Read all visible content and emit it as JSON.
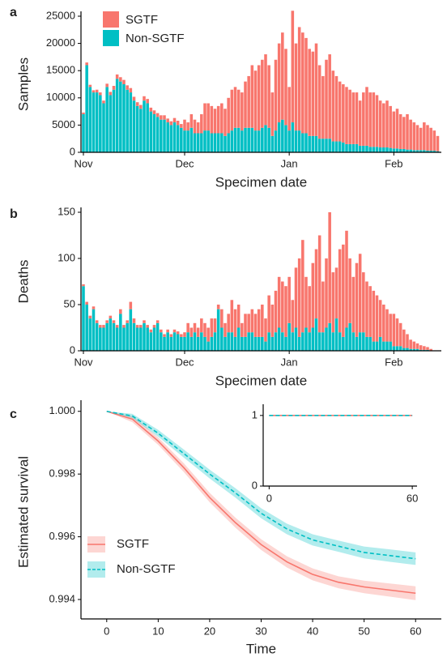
{
  "chart_data": [
    {
      "type": "bar",
      "panel": "a",
      "x_label": "Specimen date",
      "y_label": "Samples",
      "legend": "top-left",
      "categories": [
        "Nov",
        null,
        null,
        null,
        null,
        null,
        null,
        null,
        null,
        null,
        null,
        null,
        null,
        null,
        null,
        null,
        null,
        null,
        null,
        null,
        null,
        null,
        null,
        null,
        null,
        null,
        null,
        null,
        null,
        null,
        "Dec",
        null,
        null,
        null,
        null,
        null,
        null,
        null,
        null,
        null,
        null,
        null,
        null,
        null,
        null,
        null,
        null,
        null,
        null,
        null,
        null,
        null,
        null,
        null,
        null,
        null,
        null,
        null,
        null,
        null,
        null,
        "Jan",
        null,
        null,
        null,
        null,
        null,
        null,
        null,
        null,
        null,
        null,
        null,
        null,
        null,
        null,
        null,
        null,
        null,
        null,
        null,
        null,
        null,
        null,
        null,
        null,
        null,
        null,
        null,
        null,
        null,
        null,
        "Feb",
        null,
        null,
        null,
        null,
        null,
        null,
        null,
        null,
        null,
        null,
        null,
        null,
        null
      ],
      "ylim": [
        0,
        25000
      ],
      "yticks": [
        0,
        5000,
        10000,
        15000,
        20000,
        25000
      ],
      "series": [
        {
          "name": "SGTF",
          "color": "#f8766d",
          "values": [
            300,
            500,
            400,
            400,
            500,
            500,
            500,
            600,
            600,
            700,
            800,
            800,
            800,
            800,
            800,
            700,
            700,
            700,
            800,
            800,
            700,
            700,
            700,
            800,
            800,
            700,
            700,
            800,
            800,
            700,
            2000,
            1500,
            2500,
            2500,
            2000,
            3500,
            5000,
            5000,
            5000,
            4500,
            5000,
            5500,
            5000,
            6500,
            7500,
            7500,
            7000,
            7000,
            8500,
            9500,
            11500,
            11000,
            12000,
            12500,
            13000,
            11500,
            8000,
            13000,
            14500,
            16000,
            14000,
            8000,
            20500,
            16000,
            19000,
            18500,
            17500,
            16000,
            15500,
            17000,
            13500,
            11500,
            14500,
            15500,
            13000,
            12000,
            11000,
            10700,
            10500,
            10000,
            9500,
            9500,
            8300,
            9800,
            10800,
            10000,
            10000,
            9500,
            8600,
            8100,
            8600,
            7700,
            6800,
            7300,
            6400,
            5900,
            6500,
            5500,
            5100,
            4600,
            4100,
            5100,
            4700,
            4200,
            3700,
            2800
          ]
        },
        {
          "name": "Non-SGTF",
          "color": "#00bfc4",
          "values": [
            7000,
            16000,
            12000,
            11000,
            11000,
            10500,
            9000,
            12000,
            10500,
            11500,
            13500,
            13000,
            12500,
            11500,
            11000,
            9500,
            8500,
            8000,
            9500,
            9000,
            7500,
            7000,
            6500,
            6000,
            6000,
            5500,
            5000,
            5500,
            5000,
            4500,
            4000,
            4000,
            4500,
            3500,
            3500,
            3500,
            4000,
            4000,
            3500,
            3500,
            3500,
            3500,
            3000,
            3500,
            4000,
            4500,
            4500,
            4000,
            4500,
            4500,
            4500,
            4000,
            4000,
            4500,
            5000,
            4500,
            3000,
            4000,
            5500,
            6000,
            5000,
            4000,
            5500,
            4000,
            4000,
            3500,
            3500,
            3000,
            3000,
            3000,
            2500,
            2500,
            2500,
            2500,
            2000,
            2000,
            2000,
            1800,
            1500,
            1500,
            1500,
            1500,
            1200,
            1200,
            1200,
            1000,
            1000,
            1000,
            900,
            900,
            900,
            800,
            700,
            700,
            600,
            600,
            500,
            500,
            400,
            400,
            400,
            400,
            300,
            300,
            300,
            200
          ]
        }
      ]
    },
    {
      "type": "bar",
      "panel": "b",
      "x_label": "Specimen date",
      "y_label": "Deaths",
      "categories": [
        "Nov",
        null,
        null,
        null,
        null,
        null,
        null,
        null,
        null,
        null,
        null,
        null,
        null,
        null,
        null,
        null,
        null,
        null,
        null,
        null,
        null,
        null,
        null,
        null,
        null,
        null,
        null,
        null,
        null,
        null,
        "Dec",
        null,
        null,
        null,
        null,
        null,
        null,
        null,
        null,
        null,
        null,
        null,
        null,
        null,
        null,
        null,
        null,
        null,
        null,
        null,
        null,
        null,
        null,
        null,
        null,
        null,
        null,
        null,
        null,
        null,
        null,
        "Jan",
        null,
        null,
        null,
        null,
        null,
        null,
        null,
        null,
        null,
        null,
        null,
        null,
        null,
        null,
        null,
        null,
        null,
        null,
        null,
        null,
        null,
        null,
        null,
        null,
        null,
        null,
        null,
        null,
        null,
        null,
        "Feb",
        null,
        null,
        null,
        null,
        null,
        null,
        null,
        null,
        null,
        null,
        null,
        null,
        null
      ],
      "ylim": [
        0,
        150
      ],
      "yticks": [
        0,
        50,
        100,
        150
      ],
      "series": [
        {
          "name": "SGTF",
          "color": "#f8766d",
          "values": [
            2,
            3,
            3,
            3,
            3,
            3,
            3,
            3,
            3,
            3,
            3,
            5,
            3,
            3,
            8,
            5,
            3,
            3,
            3,
            3,
            3,
            3,
            3,
            3,
            3,
            3,
            3,
            3,
            3,
            3,
            5,
            10,
            10,
            10,
            10,
            15,
            15,
            15,
            20,
            15,
            5,
            20,
            15,
            20,
            35,
            30,
            25,
            15,
            25,
            20,
            25,
            25,
            30,
            35,
            25,
            40,
            35,
            45,
            55,
            55,
            55,
            50,
            35,
            65,
            85,
            100,
            55,
            50,
            70,
            75,
            105,
            55,
            75,
            120,
            65,
            55,
            90,
            100,
            105,
            70,
            60,
            80,
            85,
            65,
            60,
            55,
            55,
            50,
            40,
            40,
            35,
            30,
            35,
            30,
            25,
            20,
            15,
            10,
            8,
            6,
            5,
            4,
            3,
            2,
            0,
            0
          ]
        },
        {
          "name": "Non-SGTF",
          "color": "#00bfc4",
          "values": [
            70,
            50,
            35,
            45,
            30,
            25,
            25,
            30,
            35,
            30,
            25,
            40,
            25,
            30,
            45,
            30,
            25,
            25,
            30,
            25,
            20,
            25,
            30,
            20,
            15,
            20,
            15,
            20,
            18,
            15,
            15,
            20,
            15,
            20,
            15,
            20,
            15,
            10,
            15,
            20,
            45,
            25,
            15,
            20,
            20,
            15,
            25,
            15,
            15,
            20,
            20,
            15,
            15,
            15,
            10,
            20,
            15,
            20,
            25,
            20,
            15,
            30,
            20,
            25,
            15,
            20,
            25,
            20,
            25,
            35,
            20,
            20,
            25,
            30,
            20,
            35,
            20,
            15,
            25,
            30,
            20,
            15,
            20,
            20,
            15,
            15,
            10,
            10,
            15,
            10,
            10,
            10,
            5,
            5,
            5,
            3,
            3,
            2,
            2,
            2,
            1,
            1,
            1,
            0,
            0,
            0
          ]
        }
      ]
    },
    {
      "type": "line",
      "panel": "c",
      "x_label": "Time",
      "y_label": "Estimated survival",
      "legend": "bottom-left",
      "xlim": [
        -5,
        65
      ],
      "xticks": [
        0,
        10,
        20,
        30,
        40,
        50,
        60
      ],
      "ylim": [
        0.99338,
        1.0002
      ],
      "yticks": [
        0.994,
        0.996,
        0.998,
        {
          "value": 1,
          "label": "1.000"
        }
      ],
      "x": [
        0,
        5,
        10,
        15,
        20,
        25,
        30,
        35,
        40,
        45,
        50,
        55,
        60
      ],
      "series": [
        {
          "name": "SGTF",
          "color": "#f8766d",
          "linestyle": "solid",
          "values": [
            1.0,
            0.99975,
            0.99905,
            0.9982,
            0.99725,
            0.99645,
            0.99575,
            0.9952,
            0.9948,
            0.99455,
            0.9944,
            0.9943,
            0.9942
          ],
          "lower": [
            1.0,
            0.99965,
            0.99893,
            0.99806,
            0.9971,
            0.99629,
            0.99558,
            0.99502,
            0.99461,
            0.99436,
            0.9942,
            0.99409,
            0.99398
          ],
          "upper": [
            1.0,
            0.99985,
            0.99917,
            0.99834,
            0.9974,
            0.99661,
            0.99592,
            0.99538,
            0.99499,
            0.99474,
            0.9946,
            0.99451,
            0.99442
          ]
        },
        {
          "name": "Non-SGTF",
          "color": "#00bfc4",
          "linestyle": "dashed",
          "values": [
            1.0,
            0.99985,
            0.9993,
            0.99865,
            0.998,
            0.9974,
            0.99675,
            0.99625,
            0.9959,
            0.9957,
            0.9955,
            0.9954,
            0.9953
          ],
          "lower": [
            1.0,
            0.99978,
            0.99919,
            0.99852,
            0.99786,
            0.99725,
            0.99659,
            0.99608,
            0.99572,
            0.99552,
            0.99531,
            0.9952,
            0.9951
          ],
          "upper": [
            1.0,
            0.99992,
            0.99941,
            0.99878,
            0.99814,
            0.99755,
            0.99691,
            0.99642,
            0.99608,
            0.99588,
            0.99569,
            0.9956,
            0.9955
          ]
        }
      ]
    },
    {
      "type": "line",
      "xlim": [
        -2.5,
        62
      ],
      "xticks": [
        0,
        60
      ],
      "ylim": [
        0,
        1.09
      ],
      "yticks": [
        0,
        1
      ],
      "x": [
        0,
        60
      ],
      "series": [
        {
          "color": "#f8766d",
          "linestyle": "solid",
          "values": [
            1,
            1
          ]
        },
        {
          "color": "#00bfc4",
          "linestyle": "dashed",
          "values": [
            1,
            1
          ]
        }
      ]
    }
  ]
}
